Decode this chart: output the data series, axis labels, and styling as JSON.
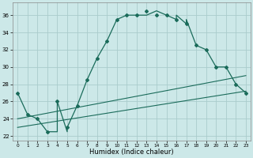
{
  "xlabel": "Humidex (Indice chaleur)",
  "background_color": "#cce8e8",
  "grid_color": "#aacccc",
  "line_color": "#1a6b5a",
  "ylim": [
    21.5,
    37.5
  ],
  "xlim": [
    -0.5,
    23.5
  ],
  "yticks": [
    22,
    24,
    26,
    28,
    30,
    32,
    34,
    36
  ],
  "xticks": [
    0,
    1,
    2,
    3,
    4,
    5,
    6,
    7,
    8,
    9,
    10,
    11,
    12,
    13,
    14,
    15,
    16,
    17,
    18,
    19,
    20,
    21,
    22,
    23
  ],
  "main_x": [
    0,
    1,
    2,
    3,
    4,
    4,
    5,
    5,
    6,
    7,
    8,
    9,
    10,
    11,
    12,
    13,
    14,
    15,
    15,
    16,
    16,
    17,
    17,
    18,
    19,
    20,
    21,
    22,
    23
  ],
  "main_y": [
    27,
    24.5,
    24,
    22.5,
    22.5,
    26.0,
    22.5,
    23.0,
    25.5,
    28.5,
    31.0,
    33.0,
    35.5,
    36.0,
    36.0,
    36.0,
    36.5,
    36.0,
    36.0,
    35.5,
    36.0,
    35.0,
    35.5,
    32.5,
    32.0,
    30.0,
    30.0,
    28.0,
    27.0
  ],
  "marker_x": [
    0,
    1,
    2,
    3,
    4,
    5,
    6,
    7,
    8,
    9,
    10,
    11,
    12,
    13,
    14,
    15,
    16,
    17,
    18,
    19,
    20,
    21,
    22,
    23
  ],
  "marker_y": [
    27,
    24.5,
    24,
    22.5,
    26.0,
    23.0,
    25.5,
    28.5,
    31.0,
    33.0,
    35.5,
    36.0,
    36.0,
    36.5,
    36.0,
    36.0,
    35.5,
    35.0,
    32.5,
    32.0,
    30.0,
    30.0,
    28.0,
    27.0
  ],
  "line1_x": [
    0,
    23
  ],
  "line1_y": [
    24.0,
    29.0
  ],
  "line2_x": [
    0,
    23
  ],
  "line2_y": [
    23.0,
    27.2
  ]
}
